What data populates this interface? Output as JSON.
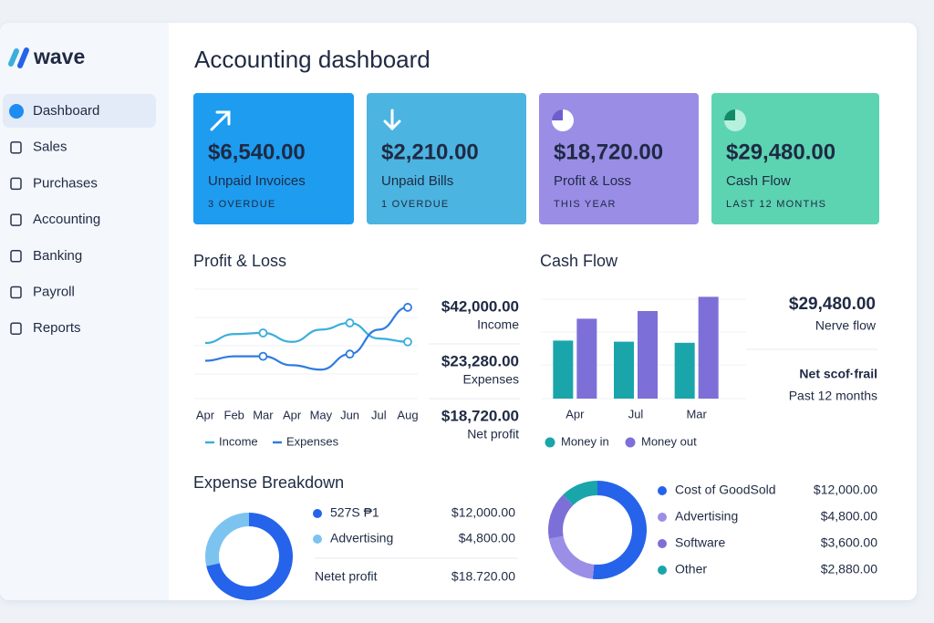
{
  "brand": "wave",
  "nav": [
    "Dashboard",
    "Sales",
    "Purchases",
    "Accounting",
    "Banking",
    "Payroll",
    "Reports"
  ],
  "title": "Accounting dashboard",
  "cards": [
    {
      "amount": "$6,540.00",
      "label": "Unpaid Invoices",
      "note": "3 OVERDUE",
      "color": "#1e9cf0"
    },
    {
      "amount": "$2,210.00",
      "label": "Unpaid Bills",
      "note": "1 OVERDUE",
      "color": "#4cb4e0"
    },
    {
      "amount": "$18,720.00",
      "label": "Profit & Loss",
      "note": "THIS YEAR",
      "color": "#9a8de6"
    },
    {
      "amount": "$29,480.00",
      "label": "Cash Flow",
      "note": "LAST 12 MONTHS",
      "color": "#5cd4b1"
    }
  ],
  "profit_loss": {
    "title": "Profit & Loss",
    "chart": {
      "type": "line",
      "categories": [
        "Apr",
        "Feb",
        "Mar",
        "Apr",
        "May",
        "Jun",
        "Jul",
        "Aug"
      ],
      "series": [
        {
          "name": "Income",
          "color": "#3aaedc",
          "values": [
            50,
            58,
            59,
            51,
            62,
            68,
            54,
            51
          ]
        },
        {
          "name": "Expenses",
          "color": "#2f7be0",
          "values": [
            34,
            38,
            38,
            30,
            26,
            40,
            62,
            82
          ]
        }
      ],
      "ylim": [
        0,
        100
      ]
    },
    "summary": [
      {
        "amount": "$42,000.00",
        "label": "Income"
      },
      {
        "amount": "$23,280.00",
        "label": "Expenses"
      },
      {
        "amount": "$18,720.00",
        "label": "Net profit"
      }
    ]
  },
  "cash_flow": {
    "title": "Cash Flow",
    "chart": {
      "type": "bar",
      "categories": [
        "Apr",
        "Jul",
        "Mar"
      ],
      "series": [
        {
          "name": "Money in",
          "color": "#1aa5ab",
          "values": [
            53,
            52,
            51
          ]
        },
        {
          "name": "Money out",
          "color": "#7d6fd8",
          "values": [
            73,
            80,
            93
          ]
        }
      ],
      "ylim": [
        0,
        100
      ]
    },
    "summary": {
      "amount": "$29,480.00",
      "label": "Nerve flow",
      "sub_title": "Net scof·frail",
      "sub_label": "Past 12 months"
    }
  },
  "expense_breakdown": {
    "title": "Expense Breakdown",
    "chart": {
      "type": "pie",
      "categories": [
        "527S ₱1",
        "Advertising"
      ],
      "values": [
        12000,
        4800
      ],
      "value_labels": [
        "$12,000.00",
        "$4,800.00"
      ],
      "colors": [
        "#2563eb",
        "#7cc3f0"
      ]
    },
    "total": {
      "label": "Netet profit",
      "amount": "$18.720.00"
    }
  },
  "expense_categories": {
    "chart": {
      "type": "pie",
      "categories": [
        "Cost of GoodSold",
        "Advertising",
        "Software",
        "Other"
      ],
      "values": [
        12000,
        4800,
        3600,
        2880
      ],
      "value_labels": [
        "$12,000.00",
        "$4,800.00",
        "$3,600.00",
        "$2,880.00"
      ],
      "colors": [
        "#2563eb",
        "#9b8ee6",
        "#7c6fd8",
        "#1aa5ab"
      ]
    }
  }
}
